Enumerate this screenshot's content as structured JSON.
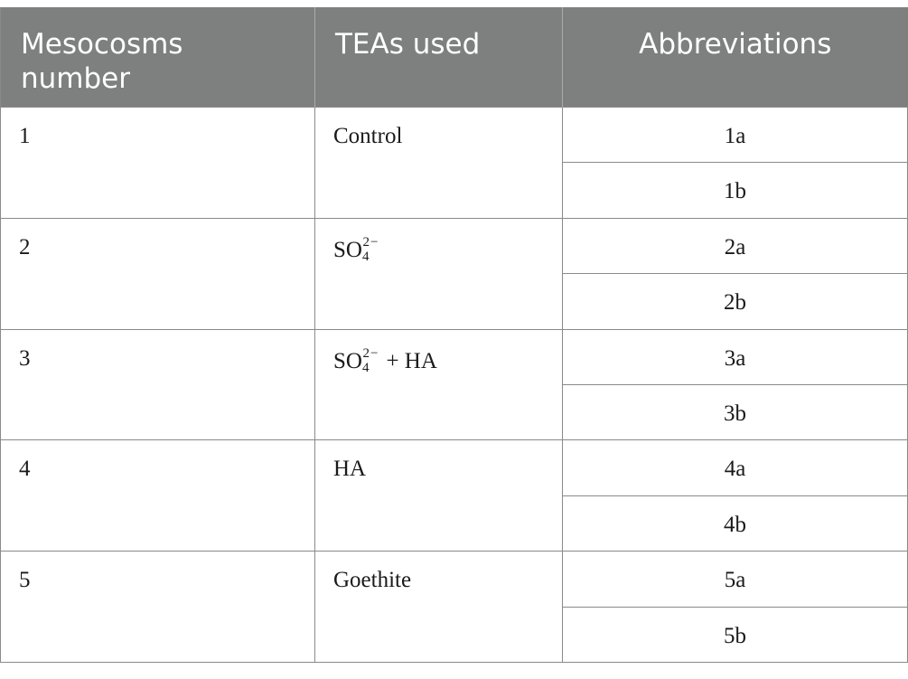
{
  "headers": {
    "col1_line1": "Mesocosms",
    "col1_line2": "number",
    "col2": "TEAs used",
    "col3": "Abbreviations"
  },
  "rows": [
    {
      "number": "1",
      "tea": "Control",
      "abbr": [
        "1a",
        "1b"
      ]
    },
    {
      "number": "2",
      "tea_base": "SO",
      "tea_sub": "4",
      "tea_sup": "2−",
      "abbr": [
        "2a",
        "2b"
      ]
    },
    {
      "number": "3",
      "tea_base": "SO",
      "tea_sub": "4",
      "tea_sup": "2−",
      "tea_suffix": "+ HA",
      "abbr": [
        "3a",
        "3b"
      ]
    },
    {
      "number": "4",
      "tea": "HA",
      "abbr": [
        "4a",
        "4b"
      ]
    },
    {
      "number": "5",
      "tea": "Goethite",
      "abbr": [
        "5a",
        "5b"
      ]
    }
  ]
}
